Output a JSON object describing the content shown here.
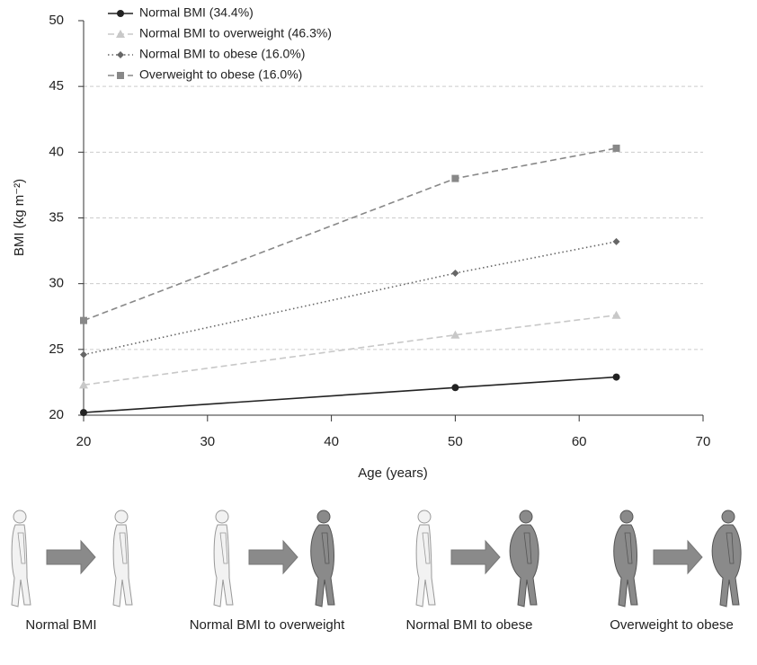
{
  "chart_data": {
    "type": "line",
    "x_label": "Age (years)",
    "y_label": "BMI (kg m⁻²)",
    "x": [
      20,
      50,
      63
    ],
    "series": [
      {
        "name": "Normal BMI (34.4%)",
        "color": "#222222",
        "linestyle": "solid",
        "marker": "circle",
        "values": [
          20.2,
          22.1,
          22.9
        ]
      },
      {
        "name": "Normal BMI to overweight (46.3%)",
        "color": "#c8c8c8",
        "linestyle": "dashed",
        "marker": "triangle",
        "values": [
          22.3,
          26.1,
          27.6
        ]
      },
      {
        "name": "Normal BMI to obese (16.0%)",
        "color": "#666666",
        "linestyle": "dotted",
        "marker": "diamond",
        "values": [
          24.6,
          30.8,
          33.2
        ]
      },
      {
        "name": "Overweight to obese (16.0%)",
        "color": "#888888",
        "linestyle": "dashed",
        "marker": "square",
        "values": [
          27.2,
          38.0,
          40.3
        ]
      }
    ],
    "xlim": [
      20,
      70
    ],
    "xticks": [
      20,
      30,
      40,
      50,
      60,
      70
    ],
    "ylim": [
      20,
      50
    ],
    "yticks": [
      20,
      25,
      30,
      35,
      40,
      45,
      50
    ],
    "grid": true,
    "legend": "top-left"
  },
  "transitions": [
    "Normal BMI",
    "Normal BMI to overweight",
    "Normal BMI to obese",
    "Overweight to obese"
  ]
}
